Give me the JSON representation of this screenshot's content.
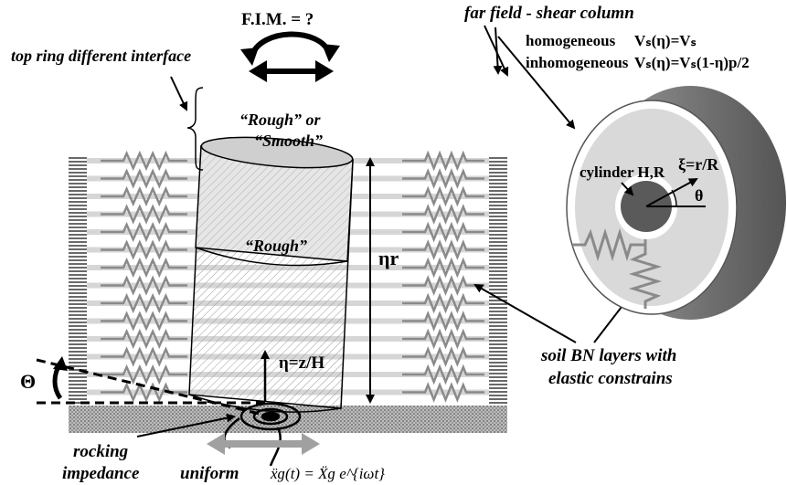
{
  "labels": {
    "fim": "F.I.M. = ?",
    "top_ring": "top ring different interface",
    "far_field": "far field - shear column",
    "homogeneous": "homogeneous",
    "homogeneous_formula": "Vₛ(η)=Vₛ",
    "inhomogeneous": "inhomogeneous",
    "inhomogeneous_formula": "Vₛ(η)=Vₛ(1-η)p/2",
    "ring_text_1": "“Rough” or",
    "ring_text_2": "“Smooth”",
    "body_text": "“Rough”",
    "eta_r": "ηr",
    "eta_z": "η=z/H",
    "cylinder": "cylinder H,R",
    "xi": "ξ=r/R",
    "theta_small": "θ",
    "theta_big": "Θ",
    "soil_1": "soil BN layers with",
    "soil_2": "elastic constrains",
    "rocking_1": "rocking",
    "rocking_2": "impedance",
    "uniform": "uniform",
    "excitation": "ẍɡ(t) = Ẍɡ e^{iωt}"
  },
  "colors": {
    "soil_band": "#d6d6d6",
    "spring": "#8a8a8a",
    "dark": "#000000",
    "ring_outer": "#7a7a7a",
    "ring_light": "#d9d9d9",
    "core": "#5a5a5a",
    "arrow_grey": "#9a9a9a"
  }
}
